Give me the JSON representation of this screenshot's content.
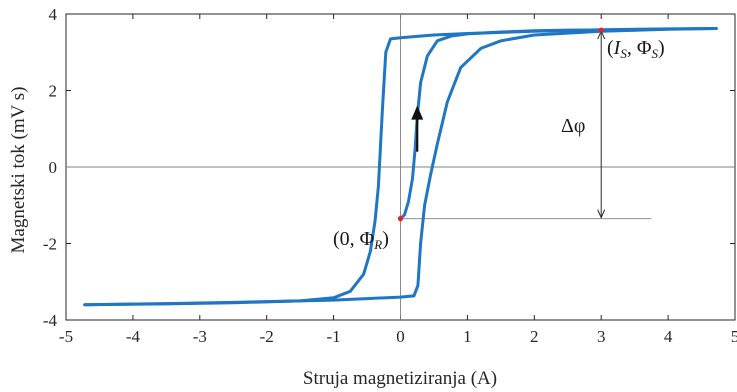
{
  "chart_data": {
    "type": "line",
    "title": "",
    "xlabel": "Struja magnetiziranja (A)",
    "ylabel": "Magnetski tok (mV s)",
    "xlim": [
      -5,
      5
    ],
    "ylim": [
      -4,
      4
    ],
    "xticks": [
      "-5",
      "-4",
      "-3",
      "-2",
      "-1",
      "0",
      "1",
      "2",
      "3",
      "4",
      "5"
    ],
    "yticks": [
      "-4",
      "-2",
      "0",
      "2",
      "4"
    ],
    "grid": false,
    "legend": "none",
    "series": [
      {
        "color": "#1f77c4",
        "x": [
          0.0,
          0.06,
          0.12,
          0.18,
          0.22,
          0.25,
          0.3,
          0.4,
          0.55,
          0.75,
          1.0,
          1.5,
          2.0,
          2.5,
          3.0
        ],
        "y": [
          -1.35,
          -1.25,
          -0.9,
          -0.3,
          0.5,
          1.3,
          2.2,
          2.9,
          3.3,
          3.42,
          3.48,
          3.53,
          3.56,
          3.58,
          3.58
        ]
      },
      {
        "color": "#1f77c4",
        "x": [
          4.72,
          4.0,
          3.0,
          2.0,
          1.0,
          0.5,
          0.2,
          0.0,
          -0.15,
          -0.22,
          -0.27,
          -0.3,
          -0.33,
          -0.38,
          -0.45,
          -0.55,
          -0.75,
          -1.0,
          -1.5,
          -2.5,
          -3.5,
          -4.72
        ],
        "y": [
          3.62,
          3.61,
          3.59,
          3.55,
          3.49,
          3.45,
          3.41,
          3.38,
          3.35,
          3.0,
          1.5,
          0.5,
          -0.5,
          -1.4,
          -2.2,
          -2.8,
          -3.25,
          -3.42,
          -3.5,
          -3.55,
          -3.58,
          -3.6
        ]
      },
      {
        "color": "#1f77c4",
        "x": [
          -4.72,
          -3.5,
          -2.5,
          -1.5,
          -1.0,
          -0.5,
          0.0,
          0.2,
          0.26,
          0.3,
          0.36,
          0.45,
          0.55,
          0.7,
          0.9,
          1.2,
          1.5,
          2.0,
          3.0,
          4.0,
          4.72
        ],
        "y": [
          -3.6,
          -3.57,
          -3.54,
          -3.5,
          -3.48,
          -3.44,
          -3.4,
          -3.37,
          -3.1,
          -2.0,
          -1.0,
          -0.2,
          0.6,
          1.7,
          2.6,
          3.1,
          3.3,
          3.45,
          3.55,
          3.6,
          3.62
        ]
      }
    ],
    "annotations": {
      "saturation_label": {
        "text_main": "(",
        "text_I": "I",
        "text_sub_S1": "S",
        "text_mid": ", Φ",
        "text_sub_S2": "S",
        "text_end": ")",
        "point": [
          3.0,
          3.58
        ]
      },
      "remanence_label": {
        "text_main": "(0, Φ",
        "text_sub_R": "R",
        "text_end": ")",
        "point": [
          0.0,
          -1.35
        ]
      },
      "delta_label": {
        "text": "Δφ",
        "x": 3.0,
        "y_top": 3.58,
        "y_bottom": -1.35
      }
    },
    "marker_color": "#e8202a",
    "axis_color": "#262626",
    "guide_color": "#808080",
    "arrow_color": "#111111"
  }
}
